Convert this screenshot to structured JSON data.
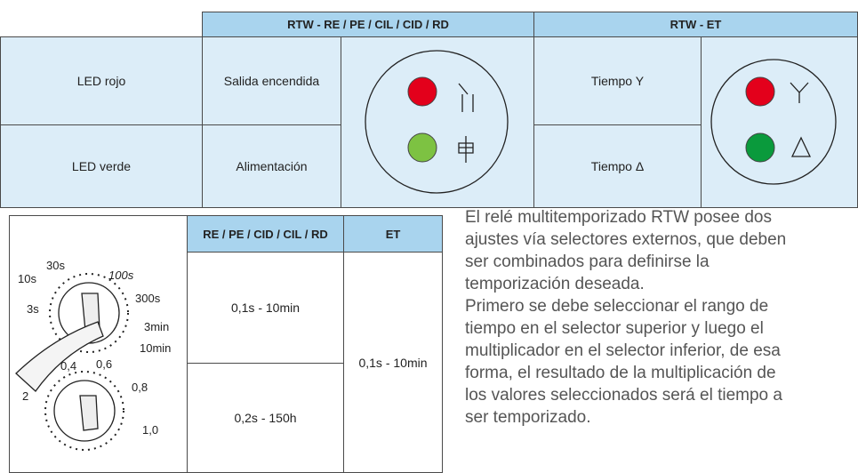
{
  "top_table": {
    "headers": [
      "RTW - RE / PE / CIL / CID / RD",
      "RTW - ET"
    ],
    "rows": [
      [
        "LED rojo",
        "Salida encendida",
        "Tiempo Y"
      ],
      [
        "LED verde",
        "Alimentación",
        "Tiempo Δ"
      ]
    ]
  },
  "dial": {
    "labels": [
      "10s",
      "30s",
      "100s",
      "3s",
      "300s",
      "3min",
      "10min",
      "0,4",
      "0,6",
      "0,8",
      "2",
      "1,0"
    ]
  },
  "bottom_table": {
    "headers": [
      "RE / PE / CID / CIL / RD",
      "ET"
    ],
    "rows": [
      [
        "0,1s - 10min",
        "0,1s - 10min"
      ],
      [
        "0,2s - 150h"
      ]
    ]
  },
  "paragraphs": [
    [
      "El relé multitemporizado RTW posee dos",
      "ajustes vía selectores externos, que deben",
      "ser combinados para definirse la",
      "temporización deseada."
    ],
    [
      "Primero se debe seleccionar el rango de",
      "tiempo en el selector superior y luego el",
      "multiplicador en el selector inferior, de esa",
      "forma, el resultado de la multiplicación de",
      "los valores seleccionados será el tiempo a",
      "ser temporizado."
    ]
  ]
}
